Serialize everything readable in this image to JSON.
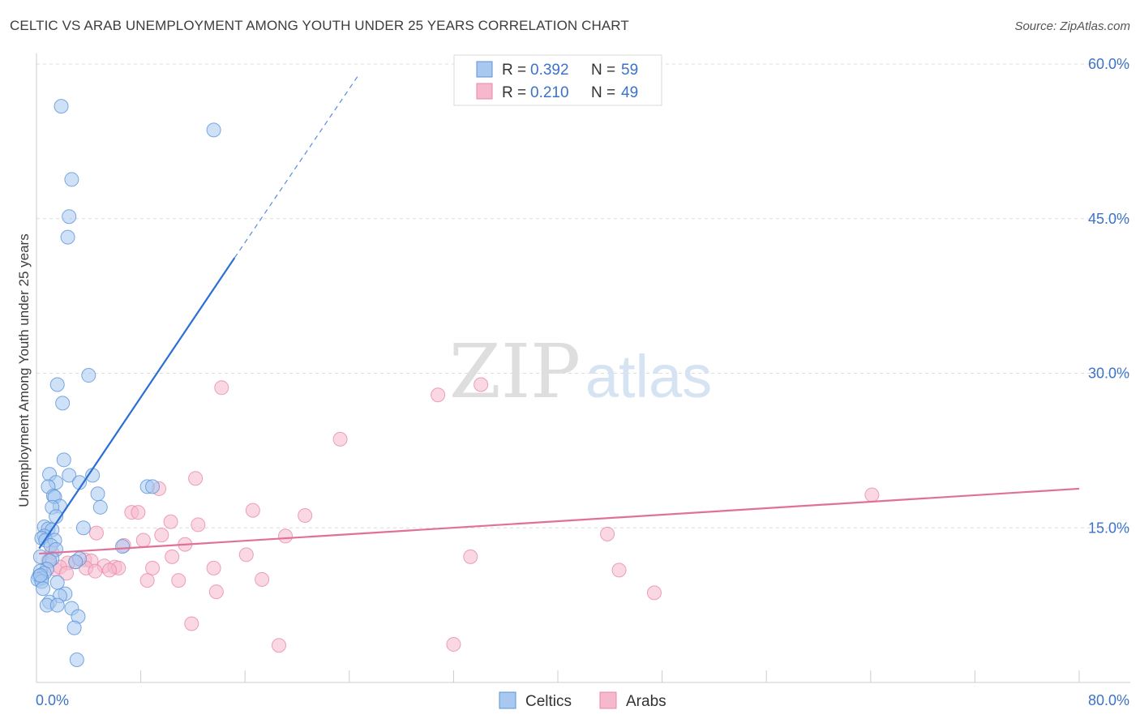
{
  "header": {
    "title": "CELTIC VS ARAB UNEMPLOYMENT AMONG YOUTH UNDER 25 YEARS CORRELATION CHART",
    "source": "Source: ZipAtlas.com"
  },
  "watermark": {
    "zip": "ZIP",
    "atlas": "atlas"
  },
  "stats_legend": {
    "r_label": "R = ",
    "n_label": "N = ",
    "rows": [
      {
        "r": "0.392",
        "n": "59"
      },
      {
        "r": "0.210",
        "n": "49"
      }
    ]
  },
  "colors": {
    "celtics_fill": "#a8c8f0",
    "celtics_stroke": "#5b93d8",
    "celtics_line": "#2a6fd6",
    "arabs_fill": "#f5b8cc",
    "arabs_stroke": "#e889a8",
    "arabs_line": "#e0709a",
    "value_text": "#3b73c7",
    "grid": "#dcdcdc"
  },
  "chart_data": {
    "type": "scatter",
    "title": "CELTIC VS ARAB UNEMPLOYMENT AMONG YOUTH UNDER 25 YEARS CORRELATION CHART",
    "xlabel": "",
    "ylabel": "Unemployment Among Youth under 25 years",
    "xlim": [
      0,
      80
    ],
    "ylim": [
      0,
      60
    ],
    "x_tick_labels": [
      {
        "value": 0,
        "label": "0.0%"
      },
      {
        "value": 80,
        "label": "80.0%"
      }
    ],
    "y_tick_labels": [
      {
        "value": 60,
        "label": "60.0%"
      },
      {
        "value": 45,
        "label": "45.0%"
      },
      {
        "value": 30,
        "label": "30.0%"
      },
      {
        "value": 15,
        "label": "15.0%"
      }
    ],
    "x_minor_ticks": [
      0,
      8,
      16,
      24,
      32,
      40,
      48,
      56,
      64,
      72,
      80
    ],
    "grid": true,
    "legend_position": "bottom-center",
    "series": [
      {
        "name": "Celtics",
        "r": 0.392,
        "n": 59,
        "trend": {
          "x0": 0.2,
          "y0": 13.0,
          "x1": 15.2,
          "y1": 41.2,
          "dash_x1": 24.8,
          "dash_y1": 59.1
        },
        "points": [
          [
            1.9,
            55.9
          ],
          [
            13.6,
            53.6
          ],
          [
            2.7,
            48.8
          ],
          [
            2.5,
            45.2
          ],
          [
            2.4,
            43.2
          ],
          [
            4.0,
            29.8
          ],
          [
            1.6,
            28.9
          ],
          [
            2.0,
            27.1
          ],
          [
            2.1,
            21.6
          ],
          [
            1.0,
            20.2
          ],
          [
            2.5,
            20.1
          ],
          [
            4.3,
            20.1
          ],
          [
            1.5,
            19.4
          ],
          [
            3.3,
            19.4
          ],
          [
            0.9,
            19.0
          ],
          [
            8.5,
            19.0
          ],
          [
            8.9,
            19.0
          ],
          [
            1.3,
            18.1
          ],
          [
            1.4,
            18.0
          ],
          [
            4.7,
            18.3
          ],
          [
            1.8,
            17.1
          ],
          [
            1.2,
            17.0
          ],
          [
            4.9,
            17.0
          ],
          [
            1.5,
            16.1
          ],
          [
            3.6,
            15.0
          ],
          [
            0.6,
            15.1
          ],
          [
            0.9,
            14.9
          ],
          [
            1.2,
            14.8
          ],
          [
            0.6,
            14.2
          ],
          [
            0.4,
            14.0
          ],
          [
            0.7,
            13.8
          ],
          [
            1.4,
            13.8
          ],
          [
            1.1,
            13.3
          ],
          [
            6.6,
            13.2
          ],
          [
            1.5,
            12.9
          ],
          [
            0.3,
            12.2
          ],
          [
            1.2,
            12.0
          ],
          [
            3.3,
            12.0
          ],
          [
            1.0,
            11.8
          ],
          [
            3.0,
            11.7
          ],
          [
            0.8,
            11.0
          ],
          [
            0.3,
            10.8
          ],
          [
            0.6,
            10.6
          ],
          [
            0.2,
            10.3
          ],
          [
            0.4,
            10.1
          ],
          [
            0.1,
            10.0
          ],
          [
            0.4,
            9.8
          ],
          [
            1.6,
            9.7
          ],
          [
            0.5,
            9.1
          ],
          [
            2.2,
            8.6
          ],
          [
            1.8,
            8.4
          ],
          [
            1.0,
            7.8
          ],
          [
            0.8,
            7.5
          ],
          [
            1.6,
            7.5
          ],
          [
            2.7,
            7.2
          ],
          [
            3.2,
            6.4
          ],
          [
            2.9,
            5.3
          ],
          [
            3.1,
            2.2
          ],
          [
            0.3,
            10.4
          ]
        ]
      },
      {
        "name": "Arabs",
        "r": 0.21,
        "n": 49,
        "trend": {
          "x0": 0.2,
          "y0": 12.5,
          "x1": 80.0,
          "y1": 18.8
        },
        "points": [
          [
            34.1,
            28.9
          ],
          [
            14.2,
            28.6
          ],
          [
            30.8,
            27.9
          ],
          [
            23.3,
            23.6
          ],
          [
            12.2,
            19.8
          ],
          [
            9.4,
            18.8
          ],
          [
            64.1,
            18.2
          ],
          [
            16.6,
            16.7
          ],
          [
            7.3,
            16.5
          ],
          [
            7.8,
            16.5
          ],
          [
            20.6,
            16.2
          ],
          [
            10.3,
            15.6
          ],
          [
            12.4,
            15.3
          ],
          [
            4.6,
            14.5
          ],
          [
            43.8,
            14.4
          ],
          [
            19.1,
            14.2
          ],
          [
            9.6,
            14.3
          ],
          [
            8.2,
            13.8
          ],
          [
            11.4,
            13.4
          ],
          [
            6.7,
            13.3
          ],
          [
            16.1,
            12.4
          ],
          [
            33.3,
            12.2
          ],
          [
            10.4,
            12.2
          ],
          [
            3.7,
            11.9
          ],
          [
            4.2,
            11.8
          ],
          [
            3.0,
            11.7
          ],
          [
            2.4,
            11.6
          ],
          [
            5.2,
            11.3
          ],
          [
            6.0,
            11.2
          ],
          [
            3.8,
            11.1
          ],
          [
            6.3,
            11.1
          ],
          [
            8.9,
            11.1
          ],
          [
            13.6,
            11.1
          ],
          [
            1.4,
            11.0
          ],
          [
            1.8,
            11.2
          ],
          [
            0.9,
            11.8
          ],
          [
            1.2,
            12.6
          ],
          [
            5.6,
            10.9
          ],
          [
            44.7,
            10.9
          ],
          [
            4.5,
            10.8
          ],
          [
            2.3,
            10.6
          ],
          [
            17.3,
            10.0
          ],
          [
            8.5,
            9.9
          ],
          [
            10.9,
            9.9
          ],
          [
            13.8,
            8.8
          ],
          [
            47.4,
            8.7
          ],
          [
            11.9,
            5.7
          ],
          [
            18.6,
            3.6
          ],
          [
            32.0,
            3.7
          ]
        ]
      }
    ]
  }
}
